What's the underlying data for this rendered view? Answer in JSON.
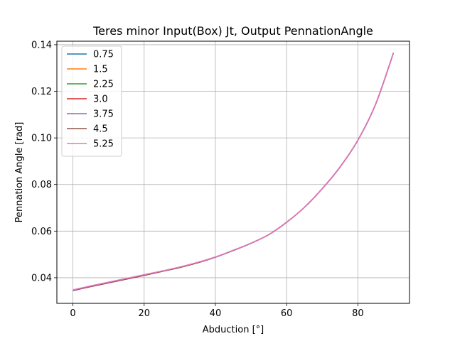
{
  "chart_data": {
    "type": "line",
    "title": "Teres minor Input(Box) Jt, Output PennationAngle",
    "xlabel": "Abduction [°]",
    "ylabel": "Pennation Angle [rad]",
    "xlim": [
      -4.5,
      94.5
    ],
    "ylim": [
      0.029,
      0.1415
    ],
    "xticks": [
      0,
      20,
      40,
      60,
      80
    ],
    "yticks": [
      0.04,
      0.06,
      0.08,
      0.1,
      0.12,
      0.14
    ],
    "xtick_labels": [
      "0",
      "20",
      "40",
      "60",
      "80"
    ],
    "ytick_labels": [
      "0.04",
      "0.06",
      "0.08",
      "0.10",
      "0.12",
      "0.14"
    ],
    "grid": true,
    "legend_position": "upper-left",
    "x": [
      0,
      5,
      10,
      15,
      20,
      25,
      30,
      35,
      40,
      45,
      50,
      55,
      60,
      65,
      70,
      75,
      80,
      85,
      90
    ],
    "series": [
      {
        "name": "0.75",
        "color": "#1f77b4",
        "values": [
          0.0345,
          0.0362,
          0.0378,
          0.0394,
          0.041,
          0.0427,
          0.0444,
          0.0464,
          0.0488,
          0.0517,
          0.0548,
          0.0585,
          0.0638,
          0.0702,
          0.0782,
          0.0875,
          0.099,
          0.1145,
          0.1365
        ]
      },
      {
        "name": "1.5",
        "color": "#ff7f0e",
        "values": [
          0.0345,
          0.0362,
          0.0378,
          0.0394,
          0.041,
          0.0427,
          0.0444,
          0.0464,
          0.0488,
          0.0517,
          0.0548,
          0.0585,
          0.0638,
          0.0702,
          0.0782,
          0.0875,
          0.099,
          0.1145,
          0.1365
        ]
      },
      {
        "name": "2.25",
        "color": "#2ca02c",
        "values": [
          0.0345,
          0.0362,
          0.0378,
          0.0394,
          0.041,
          0.0427,
          0.0444,
          0.0464,
          0.0488,
          0.0517,
          0.0548,
          0.0585,
          0.0638,
          0.0702,
          0.0782,
          0.0875,
          0.099,
          0.1145,
          0.1365
        ]
      },
      {
        "name": "3.0",
        "color": "#d62728",
        "values": [
          0.0345,
          0.0362,
          0.0378,
          0.0394,
          0.041,
          0.0427,
          0.0444,
          0.0464,
          0.0488,
          0.0517,
          0.0548,
          0.0585,
          0.0638,
          0.0702,
          0.0782,
          0.0875,
          0.099,
          0.1145,
          0.1365
        ]
      },
      {
        "name": "3.75",
        "color": "#9467bd",
        "values": [
          0.0346,
          0.0363,
          0.0379,
          0.0395,
          0.0411,
          0.0428,
          0.0445,
          0.0465,
          0.0488,
          0.0517,
          0.0548,
          0.0585,
          0.0638,
          0.0702,
          0.0782,
          0.0875,
          0.099,
          0.1145,
          0.1365
        ]
      },
      {
        "name": "4.5",
        "color": "#8c564b",
        "values": [
          0.0347,
          0.0364,
          0.038,
          0.0396,
          0.0412,
          0.0428,
          0.0445,
          0.0465,
          0.0489,
          0.0517,
          0.0548,
          0.0585,
          0.0638,
          0.0702,
          0.0782,
          0.0875,
          0.099,
          0.1145,
          0.1365
        ]
      },
      {
        "name": "5.25",
        "color": "#e377c2",
        "values": [
          0.0348,
          0.0365,
          0.0381,
          0.0397,
          0.0413,
          0.0429,
          0.0446,
          0.0466,
          0.0489,
          0.0518,
          0.0548,
          0.0585,
          0.0638,
          0.0702,
          0.0782,
          0.0875,
          0.099,
          0.1145,
          0.1365
        ]
      }
    ]
  }
}
